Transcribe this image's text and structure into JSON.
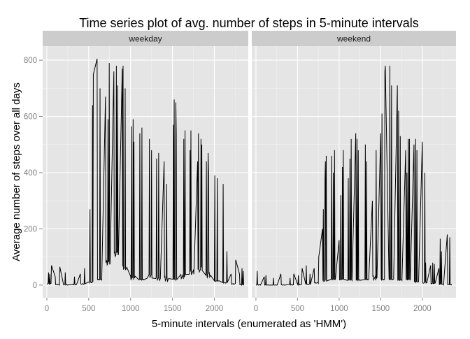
{
  "chart_data": {
    "type": "line",
    "title": "Time series plot of avg. number of steps in 5-minute intervals",
    "xlabel": "5-minute intervals (enumerated as 'HMM')",
    "ylabel": "Average number of steps over all days",
    "xlim": [
      -50,
      2405
    ],
    "ylim": [
      -45,
      850
    ],
    "x_ticks": [
      0,
      500,
      1000,
      1500,
      2000
    ],
    "y_ticks": [
      0,
      200,
      400,
      600,
      800
    ],
    "x_tick_labels": [
      "0",
      "500",
      "1000",
      "1500",
      "2000"
    ],
    "y_tick_labels": [
      "0",
      "200",
      "400",
      "600",
      "800"
    ],
    "grid": true,
    "legend": "none",
    "colors": {
      "background": "#ffffff",
      "panel": "#e5e5e5",
      "grid_major": "#ffffff",
      "grid_minor": "#f2f2f2",
      "strip": "#cccccc",
      "line": "#000000",
      "text": "#000000",
      "tick_text": "#7f7f7f"
    },
    "panels": [
      {
        "name": "weekday",
        "series": [
          {
            "type": "hourly_blocks",
            "points": [
              [
                0,
                5
              ],
              [
                100,
                2
              ],
              [
                200,
                1
              ],
              [
                300,
                2
              ],
              [
                400,
                4
              ],
              [
                500,
                10
              ],
              [
                600,
                20
              ],
              [
                700,
                80
              ],
              [
                800,
                110
              ],
              [
                900,
                60
              ],
              [
                1000,
                25
              ],
              [
                1100,
                20
              ],
              [
                1200,
                30
              ],
              [
                1300,
                25
              ],
              [
                1400,
                22
              ],
              [
                1500,
                20
              ],
              [
                1600,
                30
              ],
              [
                1700,
                45
              ],
              [
                1800,
                55
              ],
              [
                1900,
                35
              ],
              [
                2000,
                15
              ],
              [
                2100,
                8
              ],
              [
                2200,
                4
              ],
              [
                2300,
                2
              ]
            ]
          },
          {
            "type": "interval_spikes",
            "points": [
              [
                20,
                45
              ],
              [
                35,
                40
              ],
              [
                60,
                70
              ],
              [
                95,
                30
              ],
              [
                160,
                65
              ],
              [
                220,
                45
              ],
              [
                330,
                30
              ],
              [
                400,
                40
              ],
              [
                450,
                60
              ],
              [
                510,
                60
              ],
              [
                515,
                270
              ],
              [
                545,
                640
              ],
              [
                555,
                750
              ],
              [
                600,
                805
              ],
              [
                635,
                700
              ],
              [
                700,
                670
              ],
              [
                730,
                590
              ],
              [
                745,
                790
              ],
              [
                800,
                760
              ],
              [
                830,
                780
              ],
              [
                845,
                710
              ],
              [
                900,
                770
              ],
              [
                910,
                780
              ],
              [
                935,
                700
              ],
              [
                1010,
                565
              ],
              [
                1030,
                590
              ],
              [
                1040,
                510
              ],
              [
                1110,
                540
              ],
              [
                1135,
                560
              ],
              [
                1225,
                520
              ],
              [
                1250,
                480
              ],
              [
                1310,
                450
              ],
              [
                1335,
                470
              ],
              [
                1400,
                440
              ],
              [
                1430,
                360
              ],
              [
                1510,
                570
              ],
              [
                1520,
                660
              ],
              [
                1540,
                650
              ],
              [
                1545,
                540
              ],
              [
                1635,
                520
              ],
              [
                1650,
                550
              ],
              [
                1710,
                480
              ],
              [
                1720,
                550
              ],
              [
                1800,
                440
              ],
              [
                1810,
                540
              ],
              [
                1840,
                520
              ],
              [
                1850,
                500
              ],
              [
                1905,
                440
              ],
              [
                1925,
                470
              ],
              [
                1930,
                400
              ],
              [
                2005,
                390
              ],
              [
                2035,
                380
              ],
              [
                2105,
                360
              ],
              [
                2150,
                120
              ],
              [
                2200,
                40
              ],
              [
                2255,
                90
              ],
              [
                2300,
                40
              ],
              [
                2330,
                60
              ],
              [
                2345,
                50
              ]
            ]
          }
        ]
      },
      {
        "name": "weekend",
        "series": [
          {
            "type": "hourly_blocks",
            "points": [
              [
                0,
                1
              ],
              [
                100,
                0
              ],
              [
                200,
                0
              ],
              [
                300,
                0
              ],
              [
                400,
                1
              ],
              [
                500,
                2
              ],
              [
                600,
                3
              ],
              [
                700,
                8
              ],
              [
                800,
                15
              ],
              [
                900,
                20
              ],
              [
                1000,
                20
              ],
              [
                1100,
                18
              ],
              [
                1200,
                18
              ],
              [
                1300,
                20
              ],
              [
                1400,
                25
              ],
              [
                1500,
                20
              ],
              [
                1600,
                20
              ],
              [
                1700,
                18
              ],
              [
                1800,
                20
              ],
              [
                1900,
                12
              ],
              [
                2000,
                8
              ],
              [
                2100,
                6
              ],
              [
                2200,
                3
              ],
              [
                2300,
                2
              ]
            ]
          },
          {
            "type": "interval_spikes",
            "points": [
              [
                15,
                50
              ],
              [
                85,
                30
              ],
              [
                120,
                35
              ],
              [
                210,
                25
              ],
              [
                300,
                40
              ],
              [
                410,
                25
              ],
              [
                455,
                40
              ],
              [
                510,
                35
              ],
              [
                555,
                60
              ],
              [
                605,
                70
              ],
              [
                650,
                40
              ],
              [
                700,
                60
              ],
              [
                760,
                100
              ],
              [
                800,
                200
              ],
              [
                810,
                270
              ],
              [
                830,
                380
              ],
              [
                835,
                440
              ],
              [
                845,
                460
              ],
              [
                910,
                460
              ],
              [
                930,
                400
              ],
              [
                945,
                480
              ],
              [
                1000,
                160
              ],
              [
                1020,
                320
              ],
              [
                1040,
                420
              ],
              [
                1050,
                480
              ],
              [
                1110,
                380
              ],
              [
                1130,
                450
              ],
              [
                1145,
                520
              ],
              [
                1200,
                540
              ],
              [
                1215,
                520
              ],
              [
                1230,
                480
              ],
              [
                1315,
                500
              ],
              [
                1330,
                440
              ],
              [
                1400,
                300
              ],
              [
                1445,
                480
              ],
              [
                1500,
                540
              ],
              [
                1515,
                610
              ],
              [
                1550,
                760
              ],
              [
                1555,
                780
              ],
              [
                1610,
                780
              ],
              [
                1630,
                710
              ],
              [
                1700,
                710
              ],
              [
                1715,
                620
              ],
              [
                1735,
                530
              ],
              [
                1800,
                480
              ],
              [
                1815,
                400
              ],
              [
                1830,
                520
              ],
              [
                1845,
                520
              ],
              [
                1900,
                500
              ],
              [
                1920,
                520
              ],
              [
                1935,
                480
              ],
              [
                2000,
                510
              ],
              [
                2030,
                400
              ],
              [
                2040,
                80
              ],
              [
                2100,
                70
              ],
              [
                2125,
                80
              ],
              [
                2145,
                75
              ],
              [
                2200,
                60
              ],
              [
                2215,
                165
              ],
              [
                2230,
                120
              ],
              [
                2300,
                180
              ],
              [
                2330,
                170
              ]
            ]
          }
        ]
      }
    ]
  }
}
